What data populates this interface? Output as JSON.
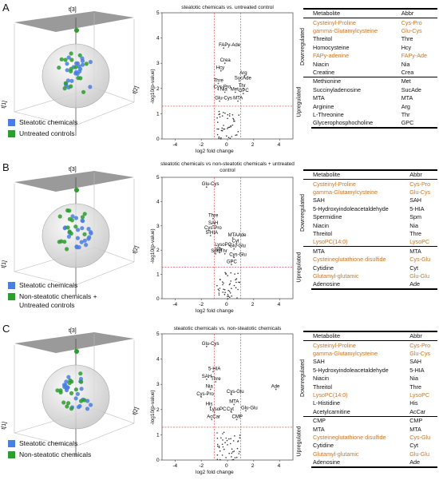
{
  "colors": {
    "blue": "#4a7fe0",
    "green": "#2b9e2e",
    "highlight": "#c8772b",
    "threshold": "#d04040",
    "plane": "#888888"
  },
  "panels": [
    {
      "letter": "A",
      "pca_axes": {
        "t3": "t[3]",
        "t2": "t[2]",
        "t1": "t[1]"
      },
      "legend": [
        "Steatotic chemicals",
        "Untreated controls"
      ],
      "volcano_title": "steatotic chemicals vs. untreated control",
      "table": {
        "groups": [
          {
            "name": "Downregulated",
            "rows": [
              [
                "Cysteinyl-Proline",
                "Cys-Pro",
                true
              ],
              [
                "gamma-Glutamylcysteine",
                "Glu-Cys",
                true
              ],
              [
                "Threitol",
                "Thre",
                false
              ],
              [
                "Homocysteine",
                "Hcy",
                false
              ],
              [
                "FAPy-adenine",
                "FAPy-Ade",
                true
              ],
              [
                "Niacin",
                "Nia",
                false
              ],
              [
                "Creatine",
                "Crea",
                false
              ]
            ]
          },
          {
            "name": "Upregulated",
            "rows": [
              [
                "Methionine",
                "Met",
                false
              ],
              [
                "Succinyladenosine",
                "SucAde",
                false
              ],
              [
                "MTA",
                "MTA",
                false
              ],
              [
                "Arginine",
                "Arg",
                false
              ],
              [
                "L-Threonine",
                "Thr",
                false
              ],
              [
                "Glycerophosphocholine",
                "GPC",
                false
              ]
            ]
          }
        ]
      }
    },
    {
      "letter": "B",
      "pca_axes": {
        "t3": "t[3]",
        "t2": "t[2]",
        "t1": "t[1]"
      },
      "legend": [
        "Steatotic chemicals",
        "Non-steatotic chemicals + Untreated controls"
      ],
      "volcano_title": "steatotic chemicals vs non-steatotic chemicals + untreated control",
      "table": {
        "groups": [
          {
            "name": "Downregulated",
            "rows": [
              [
                "Cysteinyl-Proline",
                "Cys-Pro",
                true
              ],
              [
                "gamma-Glutamylcysteine",
                "Glu-Cys",
                true
              ],
              [
                "SAH",
                "SAH",
                false
              ],
              [
                "5-Hydroxyindoleacetaldehyde",
                "5-HIA",
                false
              ],
              [
                "Spermidine",
                "Spm",
                false
              ],
              [
                "Niacin",
                "Nia",
                false
              ],
              [
                "Threitol",
                "Thre",
                false
              ],
              [
                "LysoPC(14:0)",
                "LysoPC",
                true
              ]
            ]
          },
          {
            "name": "Upregulated",
            "rows": [
              [
                "MTA",
                "MTA",
                false
              ],
              [
                "Cysteineglutathione disulfide",
                "Cys-Glu",
                true
              ],
              [
                "Cytidine",
                "Cyt",
                false
              ],
              [
                "Glutamyl-glutamic",
                "Glu-Glu",
                true
              ],
              [
                "Adenosine",
                "Ade",
                false
              ]
            ]
          }
        ]
      }
    },
    {
      "letter": "C",
      "pca_axes": {
        "t3": "t[3]",
        "t2": "t[2]",
        "t1": "t[1]"
      },
      "legend": [
        "Steatotic chemicals",
        "Non-steatotic chemicals"
      ],
      "volcano_title": "steatotic chemicals vs. non-steatotic chemicals",
      "table": {
        "groups": [
          {
            "name": "Downregulated",
            "rows": [
              [
                "Cysteinyl-Proline",
                "Cys-Pro",
                true
              ],
              [
                "gamma-Glutamylcysteine",
                "Glu-Cys",
                true
              ],
              [
                "SAH",
                "SAH",
                false
              ],
              [
                "5-Hydroxyindoleacetaldehyde",
                "5-HIA",
                false
              ],
              [
                "Niacin",
                "Nia",
                false
              ],
              [
                "Threitol",
                "Thre",
                false
              ],
              [
                "LysoPC(14:0)",
                "LysoPC",
                true
              ],
              [
                "L-Histidine",
                "His",
                false
              ],
              [
                "Acetylcarnitine",
                "AcCar",
                false
              ]
            ]
          },
          {
            "name": "Upregulated",
            "rows": [
              [
                "CMP",
                "CMP",
                false
              ],
              [
                "MTA",
                "MTA",
                false
              ],
              [
                "Cysteineglutathione disulfide",
                "Cys-Glu",
                true
              ],
              [
                "Cytidine",
                "Cyt",
                false
              ],
              [
                "Glutamyl-glutamic",
                "Glu-Glu",
                true
              ],
              [
                "Adenosine",
                "Ade",
                false
              ]
            ]
          }
        ]
      }
    }
  ],
  "table_headers": {
    "metabolite": "Metabolite",
    "abbr": "Abbr"
  },
  "volcano_axes": {
    "xlabel": "log2 fold change",
    "ylabel": "-log10(p-value)",
    "xticks": [
      "-4",
      "-2",
      "0",
      "2",
      "4"
    ],
    "yticks": [
      "0",
      "1",
      "2",
      "3",
      "4",
      "5"
    ]
  },
  "chart_data": [
    {
      "type": "scatter",
      "title": "steatotic chemicals vs. untreated control",
      "xlabel": "log2 fold change",
      "ylabel": "-log10(p-value)",
      "xlim": [
        -5,
        5
      ],
      "ylim": [
        0,
        5
      ],
      "labeled_points": [
        {
          "label": "FAPy-Ade",
          "x": -0.3,
          "y": 3.6
        },
        {
          "label": "Crea",
          "x": -0.2,
          "y": 3.0
        },
        {
          "label": "Hcy",
          "x": -0.5,
          "y": 2.7
        },
        {
          "label": "Arg",
          "x": 1.3,
          "y": 2.5
        },
        {
          "label": "SucAde",
          "x": 0.9,
          "y": 2.3
        },
        {
          "label": "Thre",
          "x": -0.7,
          "y": 2.2
        },
        {
          "label": "Thr",
          "x": 1.2,
          "y": 2.0
        },
        {
          "label": "Cys-Pro",
          "x": -0.7,
          "y": 1.95
        },
        {
          "label": "Nia",
          "x": -0.2,
          "y": 1.85
        },
        {
          "label": "Met",
          "x": 0.6,
          "y": 1.85
        },
        {
          "label": "GPC",
          "x": 1.2,
          "y": 1.8
        },
        {
          "label": "Glu-Cys",
          "x": -0.6,
          "y": 1.5
        },
        {
          "label": "MTA",
          "x": 0.8,
          "y": 1.5
        }
      ]
    },
    {
      "type": "scatter",
      "title": "steatotic chemicals vs non-steatotic chemicals + untreated control",
      "xlabel": "log2 fold change",
      "ylabel": "-log10(p-value)",
      "xlim": [
        -5,
        5
      ],
      "ylim": [
        0,
        5
      ],
      "labeled_points": [
        {
          "label": "Glu-Cys",
          "x": -1.6,
          "y": 4.6
        },
        {
          "label": "Thre",
          "x": -1.1,
          "y": 3.3
        },
        {
          "label": "SAH",
          "x": -1.1,
          "y": 3.0
        },
        {
          "label": "Cys-Pro",
          "x": -1.4,
          "y": 2.8
        },
        {
          "label": "5-HIA",
          "x": -1.3,
          "y": 2.6
        },
        {
          "label": "MTAAde",
          "x": 0.4,
          "y": 2.5
        },
        {
          "label": "Cyt",
          "x": 0.7,
          "y": 2.25
        },
        {
          "label": "LysoPC",
          "x": -0.6,
          "y": 2.1
        },
        {
          "label": "Glu-Glu",
          "x": 0.5,
          "y": 2.05
        },
        {
          "label": "Nia",
          "x": -0.6,
          "y": 1.9
        },
        {
          "label": "Spm",
          "x": -0.9,
          "y": 1.85
        },
        {
          "label": "Thr",
          "x": -0.2,
          "y": 1.85
        },
        {
          "label": "Cys-Glu",
          "x": 0.5,
          "y": 1.7
        },
        {
          "label": "GPC",
          "x": 0.3,
          "y": 1.4
        }
      ]
    },
    {
      "type": "scatter",
      "title": "steatotic chemicals vs. non-steatotic chemicals",
      "xlabel": "log2 fold change",
      "ylabel": "-log10(p-value)",
      "xlim": [
        -5,
        5
      ],
      "ylim": [
        0,
        5
      ],
      "labeled_points": [
        {
          "label": "Glu-Cys",
          "x": -1.6,
          "y": 4.5
        },
        {
          "label": "5-HIA",
          "x": -1.1,
          "y": 3.5
        },
        {
          "label": "SAH",
          "x": -1.6,
          "y": 3.2
        },
        {
          "label": "Thre",
          "x": -0.9,
          "y": 3.1
        },
        {
          "label": "Nia",
          "x": -1.3,
          "y": 2.8
        },
        {
          "label": "Ade",
          "x": 3.7,
          "y": 2.8
        },
        {
          "label": "Cys-Pro",
          "x": -2.0,
          "y": 2.5
        },
        {
          "label": "Cys-Glu",
          "x": 0.3,
          "y": 2.6
        },
        {
          "label": "MTA",
          "x": 0.5,
          "y": 2.2
        },
        {
          "label": "His",
          "x": -1.3,
          "y": 2.1
        },
        {
          "label": "LysoPC",
          "x": -1.0,
          "y": 1.9
        },
        {
          "label": "Cyt",
          "x": 0.3,
          "y": 1.9
        },
        {
          "label": "Glu-Glu",
          "x": 1.4,
          "y": 1.95
        },
        {
          "label": "AcCar",
          "x": -1.2,
          "y": 1.6
        },
        {
          "label": "CMP",
          "x": 0.7,
          "y": 1.6
        }
      ]
    }
  ]
}
